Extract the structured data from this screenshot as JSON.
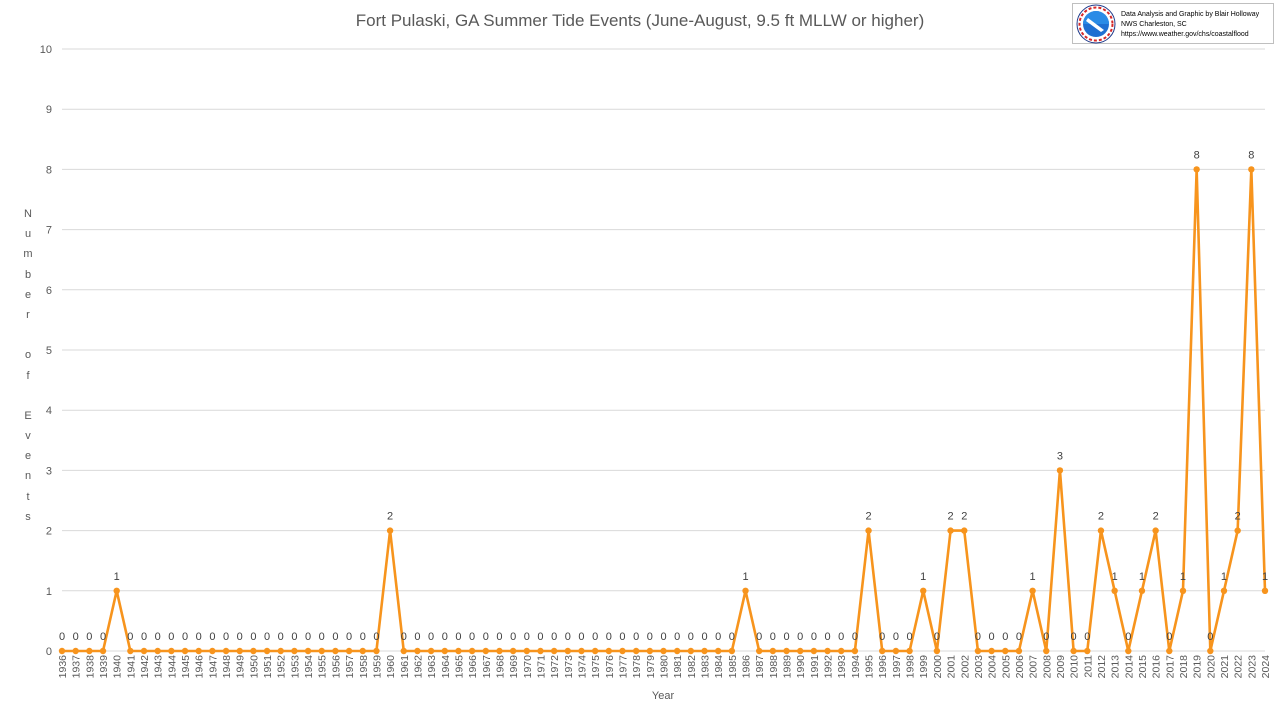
{
  "colors": {
    "series": "#F7941D",
    "grid": "#d9d9d9",
    "text": "#595959"
  },
  "credit": {
    "line1": "Data Analysis and Graphic by Blair Holloway",
    "line2": "NWS Charleston, SC",
    "line3": "https://www.weather.gov/chs/coastalflood",
    "logo_icon": "noaa-nws-logo-icon"
  },
  "chart_data": {
    "type": "line",
    "title": "Fort Pulaski, GA Summer Tide Events (June-August, 9.5 ft MLLW or higher)",
    "xlabel": "Year",
    "ylabel": "Number of Events",
    "ylim": [
      0,
      10
    ],
    "yticks": [
      0,
      1,
      2,
      3,
      4,
      5,
      6,
      7,
      8,
      9,
      10
    ],
    "grid": true,
    "legend": "none",
    "x": [
      1936,
      1937,
      1938,
      1939,
      1940,
      1941,
      1942,
      1943,
      1944,
      1945,
      1946,
      1947,
      1948,
      1949,
      1950,
      1951,
      1952,
      1953,
      1954,
      1955,
      1956,
      1957,
      1958,
      1959,
      1960,
      1961,
      1962,
      1963,
      1964,
      1965,
      1966,
      1967,
      1968,
      1969,
      1970,
      1971,
      1972,
      1973,
      1974,
      1975,
      1976,
      1977,
      1978,
      1979,
      1980,
      1981,
      1982,
      1983,
      1984,
      1985,
      1986,
      1987,
      1988,
      1989,
      1990,
      1991,
      1992,
      1993,
      1994,
      1995,
      1996,
      1997,
      1998,
      1999,
      2000,
      2001,
      2002,
      2003,
      2004,
      2005,
      2006,
      2007,
      2008,
      2009,
      2010,
      2011,
      2012,
      2013,
      2014,
      2015,
      2016,
      2017,
      2018,
      2019,
      2020,
      2021,
      2022,
      2023,
      2024
    ],
    "values": [
      0,
      0,
      0,
      0,
      1,
      0,
      0,
      0,
      0,
      0,
      0,
      0,
      0,
      0,
      0,
      0,
      0,
      0,
      0,
      0,
      0,
      0,
      0,
      0,
      2,
      0,
      0,
      0,
      0,
      0,
      0,
      0,
      0,
      0,
      0,
      0,
      0,
      0,
      0,
      0,
      0,
      0,
      0,
      0,
      0,
      0,
      0,
      0,
      0,
      0,
      1,
      0,
      0,
      0,
      0,
      0,
      0,
      0,
      0,
      2,
      0,
      0,
      0,
      1,
      0,
      2,
      2,
      0,
      0,
      0,
      0,
      1,
      0,
      3,
      0,
      0,
      2,
      1,
      0,
      1,
      2,
      0,
      1,
      8,
      0,
      1,
      2,
      8,
      1
    ]
  }
}
